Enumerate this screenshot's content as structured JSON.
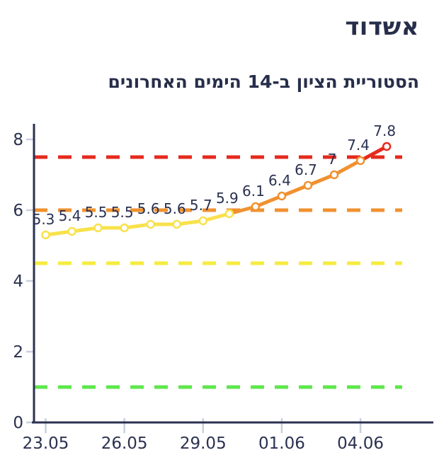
{
  "header": {
    "title": "אשדוד",
    "subtitle": "הסטוריית הציון ב-14 הימים האחרונים"
  },
  "chart_data": {
    "type": "line",
    "title": "אשדוד",
    "subtitle": "הסטוריית הציון ב-14 הימים האחרונים",
    "values": [
      5.3,
      5.4,
      5.5,
      5.5,
      5.6,
      5.6,
      5.7,
      5.9,
      6.1,
      6.4,
      6.7,
      7,
      7.4,
      7.8
    ],
    "point_labels": [
      "5.3",
      "5.4",
      "5.5",
      "5.5",
      "5.6",
      "5.6",
      "5.7",
      "5.9",
      "6.1",
      "6.4",
      "6.7",
      "7",
      "7.4",
      "7.8"
    ],
    "x_tick_labels": [
      "23.05",
      "26.05",
      "29.05",
      "01.06",
      "04.06"
    ],
    "x_tick_point_indices": [
      0,
      3,
      6,
      9,
      12
    ],
    "y_tick_labels": [
      "0",
      "2",
      "4",
      "6",
      "8"
    ],
    "y_ticks": [
      0,
      2,
      4,
      6,
      8
    ],
    "ylim": [
      0,
      8
    ],
    "grid": false,
    "legend": false,
    "threshold_lines": [
      {
        "name": "red-threshold",
        "value": 7.5,
        "color": "#e62a1e"
      },
      {
        "name": "orange-threshold",
        "value": 6,
        "color": "#f0912f"
      },
      {
        "name": "yellow-threshold",
        "value": 4.5,
        "color": "#f6eb3d"
      },
      {
        "name": "green-threshold",
        "value": 1,
        "color": "#5ee74b"
      }
    ],
    "line_color_ranges": [
      {
        "name": "yellow",
        "below": 6,
        "color": "#f8e14b"
      },
      {
        "name": "orange",
        "below": 7.5,
        "color": "#f0912f"
      },
      {
        "name": "red",
        "below": 99,
        "color": "#e62a1e"
      }
    ],
    "marker_fill": "#ffffff",
    "axis_color": "#2a3150",
    "tick_mark_color": "#c9cfde",
    "text_color": "#2a3150"
  }
}
